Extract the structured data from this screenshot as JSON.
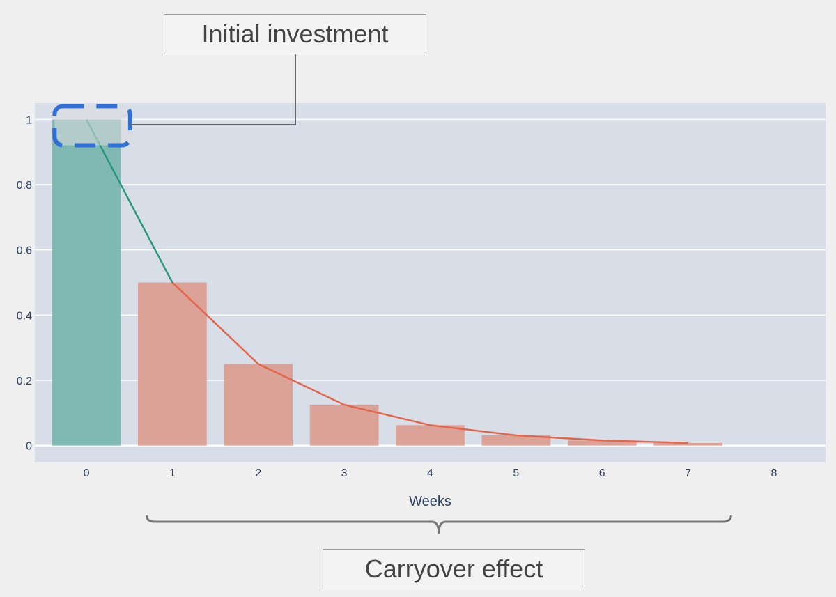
{
  "annotations": {
    "initial_investment": "Initial investment",
    "carryover_effect": "Carryover effect"
  },
  "colors": {
    "plot_bg": "#d8dee8",
    "page_bg": "#efefef",
    "initial_bar": "#80b8b4",
    "carry_bar": "#dba297",
    "initial_line": "#2a9680",
    "carry_line": "#e5654b",
    "highlight": "#2f6fd6",
    "axis_text": "#2a3f5f",
    "grid": "#ffffff"
  },
  "chart_data": {
    "type": "bar",
    "xlabel": "Weeks",
    "ylabel": "",
    "xlim": [
      -0.6,
      8.6
    ],
    "ylim": [
      -0.05,
      1.05
    ],
    "x_ticks": [
      "0",
      "1",
      "2",
      "3",
      "4",
      "5",
      "6",
      "7",
      "8"
    ],
    "y_ticks": [
      {
        "value": 0,
        "label": "0"
      },
      {
        "value": 0.2,
        "label": "0.2"
      },
      {
        "value": 0.4,
        "label": "0.4"
      },
      {
        "value": 0.6,
        "label": "0.6"
      },
      {
        "value": 0.8,
        "label": "0.8"
      },
      {
        "value": 1,
        "label": "1"
      }
    ],
    "grid": true,
    "bars": [
      {
        "x": 0,
        "value": 1.0,
        "group": "initial"
      },
      {
        "x": 1,
        "value": 0.5,
        "group": "carryover"
      },
      {
        "x": 2,
        "value": 0.25,
        "group": "carryover"
      },
      {
        "x": 3,
        "value": 0.125,
        "group": "carryover"
      },
      {
        "x": 4,
        "value": 0.0625,
        "group": "carryover"
      },
      {
        "x": 5,
        "value": 0.03125,
        "group": "carryover"
      },
      {
        "x": 6,
        "value": 0.015625,
        "group": "carryover"
      },
      {
        "x": 7,
        "value": 0.0078125,
        "group": "carryover"
      }
    ],
    "lines": [
      {
        "group": "initial",
        "points": [
          [
            0,
            1.0
          ],
          [
            1,
            0.5
          ]
        ]
      },
      {
        "group": "carryover",
        "points": [
          [
            1,
            0.5
          ],
          [
            2,
            0.25
          ],
          [
            3,
            0.125
          ],
          [
            4,
            0.0625
          ],
          [
            5,
            0.03125
          ],
          [
            6,
            0.015625
          ],
          [
            7,
            0.0078125
          ]
        ]
      }
    ],
    "brace_range": [
      0.7,
      7.5
    ],
    "highlight_x_range": [
      -0.5,
      0.55
    ],
    "highlight_y_range": [
      0.925,
      1.045
    ]
  }
}
